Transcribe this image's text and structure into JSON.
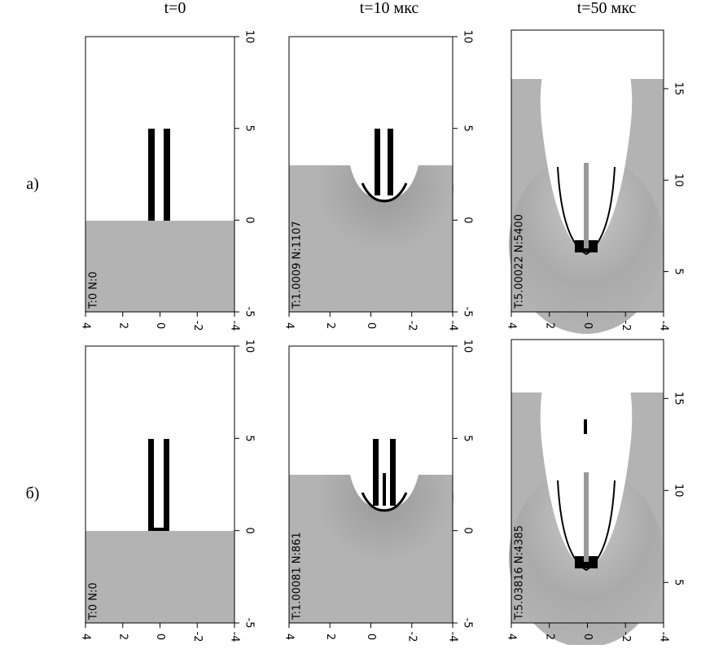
{
  "headers": [
    "t=0",
    "t=10 мкс",
    "t=50 мкс"
  ],
  "rows": [
    {
      "label": "а)",
      "panels": [
        {
          "label": "T:0 N:0",
          "ylim": [
            -5,
            10
          ],
          "yticks": [
            10,
            5,
            0,
            -5
          ],
          "xlim": [
            4,
            -4
          ],
          "xticks": [
            4,
            2,
            0,
            -2,
            -4
          ]
        },
        {
          "label": "T:1.0009 N:1107",
          "ylim": [
            -5,
            10
          ],
          "yticks": [
            10,
            5,
            0,
            -5
          ],
          "xlim": [
            4,
            -4
          ],
          "xticks": [
            4,
            2,
            0,
            -2,
            -4
          ]
        },
        {
          "label": "T:5.00022 N:5400",
          "ylim": [
            2.8,
            18.2
          ],
          "yticks": [
            15,
            10,
            5
          ],
          "xlim": [
            4,
            -4
          ],
          "xticks": [
            4,
            2,
            0,
            -2,
            -4
          ]
        }
      ]
    },
    {
      "label": "б)",
      "panels": [
        {
          "label": "T:0 N:0",
          "ylim": [
            -5,
            10
          ],
          "yticks": [
            10,
            5,
            0,
            -5
          ],
          "xlim": [
            4,
            -4
          ],
          "xticks": [
            4,
            2,
            0,
            -2,
            -4
          ]
        },
        {
          "label": "T:1.00081 N:861",
          "ylim": [
            -5,
            10
          ],
          "yticks": [
            10,
            5,
            0,
            -5
          ],
          "xlim": [
            4,
            -4
          ],
          "xticks": [
            4,
            2,
            0,
            -2,
            -4
          ]
        },
        {
          "label": "T:5.03816 N:4385",
          "ylim": [
            2.8,
            18.2
          ],
          "yticks": [
            15,
            10,
            5
          ],
          "xlim": [
            4,
            -4
          ],
          "xticks": [
            4,
            2,
            0,
            -2,
            -4
          ]
        }
      ]
    }
  ]
}
